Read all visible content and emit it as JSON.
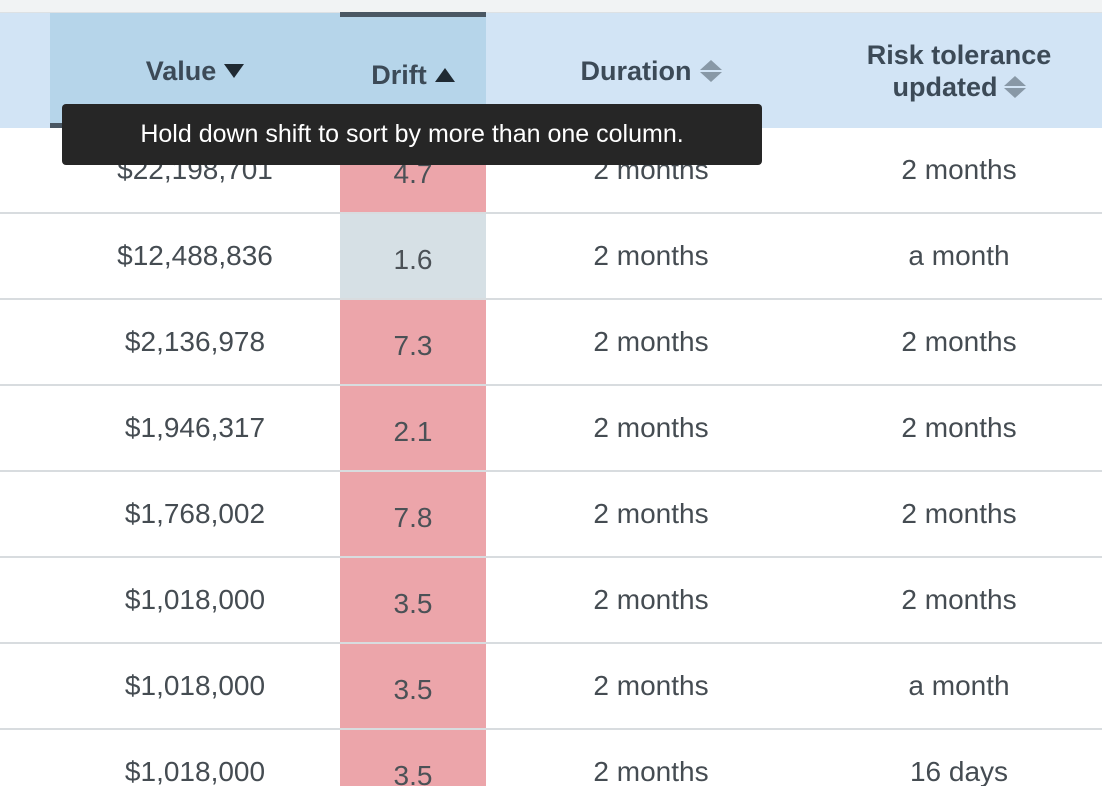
{
  "table": {
    "headers": {
      "value": "Value",
      "drift": "Drift",
      "duration": "Duration",
      "risk_line1": "Risk tolerance",
      "risk_line2": "updated"
    },
    "sort": {
      "value": "descending",
      "drift": "ascending",
      "duration": "unsorted",
      "risk": "unsorted"
    },
    "rows": [
      {
        "value": "$22,198,701",
        "drift": "4.7",
        "drift_status": "high",
        "duration": "2 months",
        "risk": "2 months"
      },
      {
        "value": "$12,488,836",
        "drift": "1.6",
        "drift_status": "ok",
        "duration": "2 months",
        "risk": "a month"
      },
      {
        "value": "$2,136,978",
        "drift": "7.3",
        "drift_status": "high",
        "duration": "2 months",
        "risk": "2 months"
      },
      {
        "value": "$1,946,317",
        "drift": "2.1",
        "drift_status": "high",
        "duration": "2 months",
        "risk": "2 months"
      },
      {
        "value": "$1,768,002",
        "drift": "7.8",
        "drift_status": "high",
        "duration": "2 months",
        "risk": "2 months"
      },
      {
        "value": "$1,018,000",
        "drift": "3.5",
        "drift_status": "high",
        "duration": "2 months",
        "risk": "2 months"
      },
      {
        "value": "$1,018,000",
        "drift": "3.5",
        "drift_status": "high",
        "duration": "2 months",
        "risk": "a month"
      },
      {
        "value": "$1,018,000",
        "drift": "3.5",
        "drift_status": "high",
        "duration": "2 months",
        "risk": "16 days"
      }
    ]
  },
  "tooltip": {
    "text": "Hold down shift to sort by more than one column."
  },
  "colors": {
    "header_bg": "#d2e4f5",
    "header_active_bg": "#b6d5ea",
    "drift_high": "#eca5aa",
    "drift_ok": "#d6e0e5",
    "tooltip_bg": "#262626"
  },
  "icons": {
    "value_sort": "sort-desc-icon",
    "drift_sort": "sort-asc-icon",
    "duration_sort": "sort-both-icon",
    "risk_sort": "sort-both-icon"
  }
}
